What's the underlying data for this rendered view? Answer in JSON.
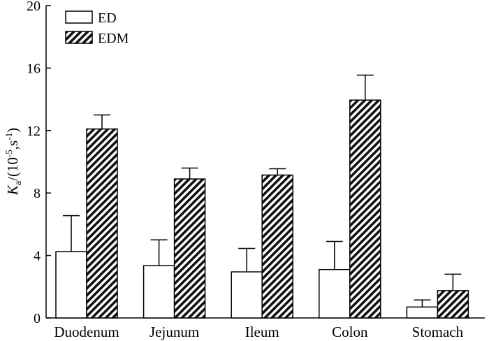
{
  "chart_data": {
    "type": "bar",
    "categories": [
      "Duodenum",
      "Jejunum",
      "Ileum",
      "Colon",
      "Stomach"
    ],
    "series": [
      {
        "name": "ED",
        "values": [
          4.25,
          3.35,
          2.95,
          3.1,
          0.7
        ],
        "errors": [
          2.3,
          1.65,
          1.5,
          1.8,
          0.45
        ],
        "fill": "#ffffff"
      },
      {
        "name": "EDM",
        "values": [
          12.1,
          8.9,
          9.15,
          13.95,
          1.75
        ],
        "errors": [
          0.9,
          0.7,
          0.4,
          1.6,
          1.05
        ],
        "fill": "hatch"
      }
    ],
    "ylim": [
      0,
      20
    ],
    "yticks": [
      0,
      4,
      8,
      12,
      16,
      20
    ],
    "ylabel": {
      "base": "K",
      "sub": "a",
      "mid": "/(10",
      "sup1": "-5",
      "sep": ",s",
      "sup2": "-1",
      "end": ")"
    },
    "legend_position": "top-left",
    "grid": false
  }
}
